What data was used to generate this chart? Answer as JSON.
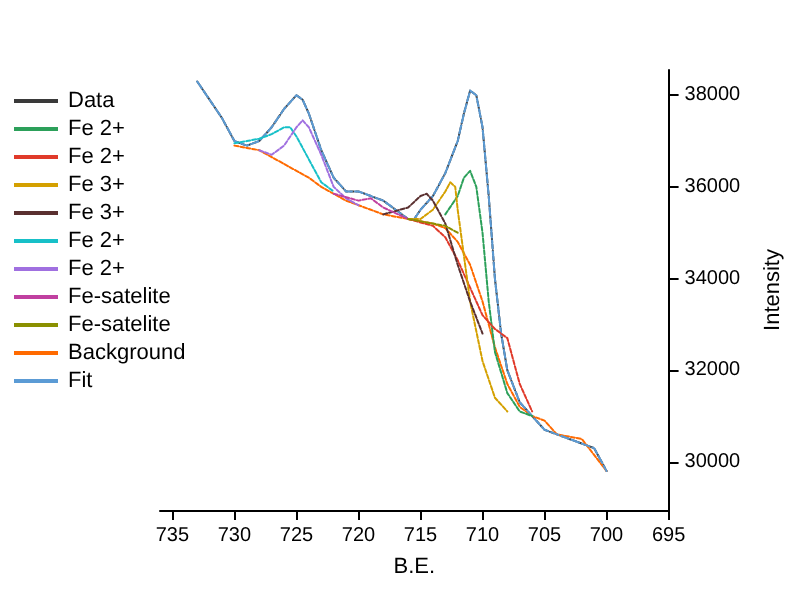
{
  "chart_data": {
    "type": "line",
    "xlabel": "B.E.",
    "ylabel": "Intensity",
    "xlim": [
      736,
      695
    ],
    "xticks": [
      735,
      730,
      725,
      720,
      715,
      710,
      705,
      700,
      695
    ],
    "ylim": [
      28950,
      38550
    ],
    "yticks": [
      30000,
      32000,
      34000,
      36000,
      38000
    ],
    "grid": false,
    "legend": "left",
    "marker": "none",
    "line_style": "dotted",
    "series": [
      {
        "name": "Data",
        "color": "#3a3a3a",
        "x": [
          733,
          731,
          730,
          729,
          728,
          727,
          726,
          725,
          724.5,
          724,
          723,
          722,
          721,
          720,
          719,
          718,
          717,
          716,
          715.5,
          715,
          714,
          713,
          712,
          711.5,
          711,
          710.5,
          710,
          709.5,
          709,
          708.5,
          708,
          707,
          706,
          705,
          704,
          703,
          702,
          701,
          700
        ],
        "values": [
          38300,
          37500,
          37000,
          36900,
          37000,
          37300,
          37700,
          38000,
          37900,
          37600,
          36800,
          36200,
          35900,
          35900,
          35800,
          35700,
          35500,
          35300,
          35300,
          35500,
          35800,
          36300,
          37000,
          37600,
          38100,
          38000,
          37300,
          35800,
          34000,
          32800,
          32000,
          31300,
          31000,
          30700,
          30600,
          30500,
          30400,
          30300,
          29800
        ]
      },
      {
        "name": "Fe 2+",
        "color": "#2ca05a",
        "x": [
          713,
          712,
          711.5,
          711,
          710.5,
          710,
          709.5,
          709,
          708,
          707,
          706
        ],
        "values": [
          35400,
          35800,
          36200,
          36350,
          36000,
          35000,
          33500,
          32400,
          31500,
          31100,
          31000
        ]
      },
      {
        "name": "Fe 2+",
        "color": "#e03a2a",
        "x": [
          716,
          714,
          713,
          712,
          711,
          710,
          709,
          708,
          707,
          706
        ],
        "values": [
          35300,
          35150,
          34900,
          34400,
          33800,
          33200,
          32900,
          32700,
          31700,
          31100
        ]
      },
      {
        "name": "Fe 3+",
        "color": "#d4a000",
        "x": [
          716,
          715,
          714,
          713,
          712.6,
          712.2,
          712,
          711.5,
          711,
          710,
          709,
          708
        ],
        "values": [
          35300,
          35300,
          35500,
          35900,
          36100,
          36000,
          35500,
          34500,
          33500,
          32200,
          31400,
          31100
        ]
      },
      {
        "name": "Fe 3+",
        "color": "#5a3030",
        "x": [
          718,
          716,
          715,
          714.5,
          714,
          713,
          712,
          711,
          710
        ],
        "values": [
          35400,
          35550,
          35800,
          35850,
          35700,
          35200,
          34300,
          33500,
          32800
        ]
      },
      {
        "name": "Fe 2+",
        "color": "#17c0c8",
        "x": [
          730,
          729,
          728,
          727,
          726,
          725.5,
          725,
          724,
          723,
          722
        ],
        "values": [
          36950,
          37000,
          37050,
          37150,
          37300,
          37300,
          37100,
          36600,
          36100,
          35900
        ]
      },
      {
        "name": "Fe 2+",
        "color": "#a070e0",
        "x": [
          728,
          727,
          726,
          725,
          724.5,
          724,
          723,
          722,
          721,
          720
        ],
        "values": [
          36800,
          36700,
          36900,
          37300,
          37450,
          37300,
          36700,
          36000,
          35750,
          35600
        ]
      },
      {
        "name": "Fe-satelite",
        "color": "#c040a0",
        "x": [
          722,
          720,
          719,
          718,
          716
        ],
        "values": [
          35850,
          35700,
          35750,
          35550,
          35300
        ]
      },
      {
        "name": "Fe-satelite",
        "color": "#8a9000",
        "x": [
          716,
          715,
          714,
          713,
          712
        ],
        "values": [
          35300,
          35250,
          35200,
          35150,
          35000
        ]
      },
      {
        "name": "Background",
        "color": "#ff6a00",
        "x": [
          730,
          729,
          728,
          727,
          726,
          725,
          724,
          723,
          722,
          721,
          720,
          719,
          718,
          717,
          716,
          715,
          714,
          713,
          712,
          711,
          710,
          709,
          708,
          707,
          706,
          705,
          704,
          702,
          700
        ],
        "values": [
          36900,
          36850,
          36800,
          36650,
          36500,
          36350,
          36200,
          36000,
          35850,
          35700,
          35600,
          35500,
          35400,
          35350,
          35300,
          35250,
          35200,
          35100,
          34800,
          34300,
          33500,
          32500,
          31700,
          31200,
          31000,
          30900,
          30600,
          30500,
          29800
        ]
      },
      {
        "name": "Fit",
        "color": "#5b9bd5",
        "line_style": "dashed",
        "x": [
          733,
          731,
          730,
          729,
          728,
          727,
          726,
          725,
          724.5,
          724,
          723,
          722,
          721,
          720,
          719,
          718,
          717,
          716,
          715.5,
          715,
          714,
          713,
          712,
          711.5,
          711,
          710.5,
          710,
          709.5,
          709,
          708.5,
          708,
          707,
          706,
          705,
          704,
          703,
          702,
          701,
          700
        ],
        "values": [
          38300,
          37500,
          37000,
          36900,
          37000,
          37300,
          37700,
          38000,
          37900,
          37600,
          36800,
          36200,
          35900,
          35900,
          35800,
          35700,
          35500,
          35300,
          35300,
          35500,
          35800,
          36300,
          37000,
          37600,
          38100,
          38000,
          37300,
          35800,
          34000,
          32800,
          32000,
          31300,
          31000,
          30700,
          30600,
          30500,
          30400,
          30300,
          29800
        ]
      }
    ]
  }
}
